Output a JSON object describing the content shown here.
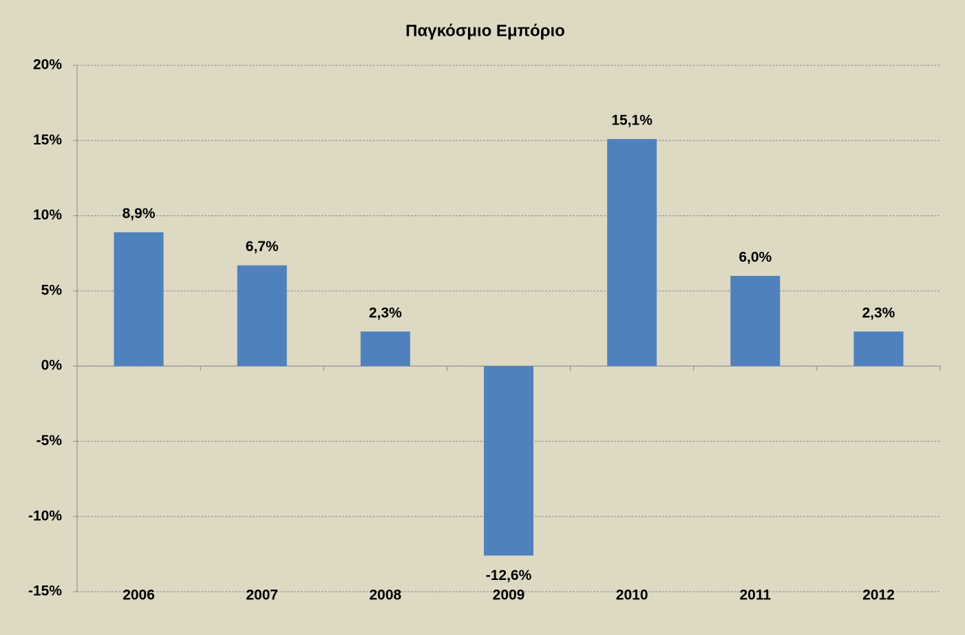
{
  "chart_data": {
    "type": "bar",
    "title": "Παγκόσμιο Εμπόριο",
    "categories": [
      "2006",
      "2007",
      "2008",
      "2009",
      "2010",
      "2011",
      "2012"
    ],
    "values": [
      8.9,
      6.7,
      2.3,
      -12.6,
      15.1,
      6.0,
      2.3
    ],
    "value_labels": [
      "8,9%",
      "6,7%",
      "2,3%",
      "-12,6%",
      "15,1%",
      "6,0%",
      "2,3%"
    ],
    "color": "#4f81bd",
    "negative_label_color": "#ff0000",
    "ylim": [
      -15,
      20
    ],
    "yticks": [
      {
        "value": -15,
        "label": "-15%"
      },
      {
        "value": -10,
        "label": "-10%"
      },
      {
        "value": -5,
        "label": "-5%"
      },
      {
        "value": 0,
        "label": "0%"
      },
      {
        "value": 5,
        "label": "5%"
      },
      {
        "value": 10,
        "label": "10%"
      },
      {
        "value": 15,
        "label": "15%"
      },
      {
        "value": 20,
        "label": "20%"
      }
    ],
    "grid": true
  }
}
